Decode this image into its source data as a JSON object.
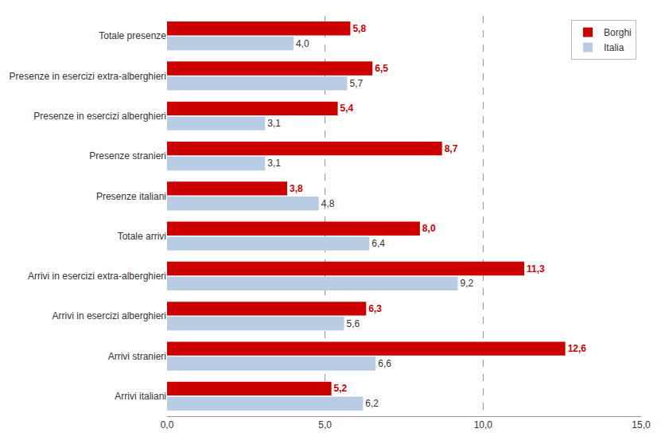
{
  "chart_data": {
    "type": "bar",
    "orientation": "horizontal",
    "categories": [
      "Totale presenze",
      "Presenze in esercizi extra-alberghieri",
      "Presenze in esercizi alberghieri",
      "Presenze stranieri",
      "Presenze italiani",
      "Totale arrivi",
      "Arrivi in esercizi extra-alberghieri",
      "Arrivi in esercizi alberghieri",
      "Arrivi stranieri",
      "Arrivi italiani"
    ],
    "series": [
      {
        "name": "Borghi",
        "color": "#cc0000",
        "values": [
          5.8,
          6.5,
          5.4,
          8.7,
          3.8,
          8.0,
          11.3,
          6.3,
          12.6,
          5.2
        ],
        "value_labels": [
          "5,8",
          "6,5",
          "5,4",
          "8,7",
          "3,8",
          "8,0",
          "11,3",
          "6,3",
          "12,6",
          "5,2"
        ]
      },
      {
        "name": "Italia",
        "color": "#b8cce4",
        "values": [
          4.0,
          5.7,
          3.1,
          3.1,
          4.8,
          6.4,
          9.2,
          5.6,
          6.6,
          6.2
        ],
        "value_labels": [
          "4,0",
          "5,7",
          "3,1",
          "3,1",
          "4,8",
          "6,4",
          "9,2",
          "5,6",
          "6,6",
          "6,2"
        ]
      }
    ],
    "xlim": [
      0,
      15.0
    ],
    "xticks": [
      {
        "value": 0,
        "label": "0,0"
      },
      {
        "value": 5,
        "label": "5,0"
      },
      {
        "value": 10,
        "label": "10,0"
      },
      {
        "value": 15,
        "label": "15,0"
      }
    ],
    "grid": true,
    "legend": "upper right",
    "data_labels": true
  }
}
